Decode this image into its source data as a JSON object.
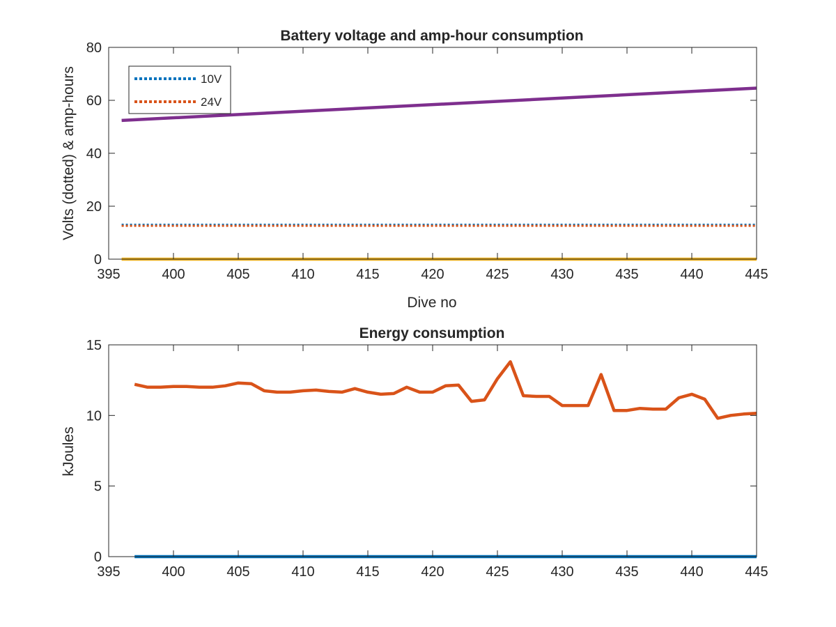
{
  "chart_data": [
    {
      "type": "line",
      "title": "Battery voltage and amp-hour consumption",
      "xlabel": "Dive no",
      "ylabel": "Volts (dotted) & amp-hours",
      "xlim": [
        395,
        445
      ],
      "ylim": [
        0,
        80
      ],
      "xticks": [
        "395",
        "400",
        "405",
        "410",
        "415",
        "420",
        "425",
        "430",
        "435",
        "440",
        "445"
      ],
      "yticks": [
        "0",
        "20",
        "40",
        "60",
        "80"
      ],
      "grid": false,
      "legend_placement": "top-left",
      "legend": [
        "10V",
        "24V"
      ],
      "series": [
        {
          "name": "10V",
          "style": "dotted",
          "color": "#0072BD",
          "x": [
            396,
            445
          ],
          "y": [
            13.0,
            13.0
          ]
        },
        {
          "name": "24V",
          "style": "dotted",
          "color": "#D95319",
          "x": [
            396,
            445
          ],
          "y": [
            12.6,
            12.6
          ]
        },
        {
          "style": "solid",
          "color": "#7E2F8E",
          "x": [
            396,
            445
          ],
          "y": [
            52.4,
            64.6
          ]
        },
        {
          "style": "solid",
          "color": "#EDB120",
          "x": [
            396,
            445
          ],
          "y": [
            0,
            0
          ]
        }
      ]
    },
    {
      "type": "line",
      "title": "Energy consumption",
      "xlabel": "",
      "ylabel": "kJoules",
      "xlim": [
        395,
        445
      ],
      "ylim": [
        0,
        15
      ],
      "xticks": [
        "395",
        "400",
        "405",
        "410",
        "415",
        "420",
        "425",
        "430",
        "435",
        "440",
        "445"
      ],
      "yticks": [
        "0",
        "5",
        "10",
        "15"
      ],
      "grid": false,
      "series": [
        {
          "style": "solid",
          "color": "#D95319",
          "x": [
            397,
            398,
            399,
            400,
            401,
            402,
            403,
            404,
            405,
            406,
            407,
            408,
            409,
            410,
            411,
            412,
            413,
            414,
            415,
            416,
            417,
            418,
            419,
            420,
            421,
            422,
            423,
            424,
            425,
            426,
            427,
            428,
            429,
            430,
            431,
            432,
            433,
            434,
            435,
            436,
            437,
            438,
            439,
            440,
            441,
            442,
            443,
            444,
            445
          ],
          "y": [
            12.2,
            12.0,
            12.0,
            12.05,
            12.05,
            12.0,
            12.0,
            12.1,
            12.3,
            12.25,
            11.75,
            11.65,
            11.65,
            11.75,
            11.8,
            11.7,
            11.65,
            11.9,
            11.65,
            11.5,
            11.55,
            12.0,
            11.65,
            11.65,
            12.1,
            12.15,
            11.0,
            11.1,
            12.6,
            13.8,
            11.4,
            11.35,
            11.35,
            10.7,
            10.7,
            10.7,
            12.9,
            10.35,
            10.35,
            10.5,
            10.45,
            10.45,
            11.25,
            11.5,
            11.15,
            9.8,
            10.0,
            10.1,
            10.15
          ]
        },
        {
          "style": "solid",
          "color": "#0072BD",
          "x": [
            397,
            445
          ],
          "y": [
            0,
            0
          ]
        }
      ]
    }
  ]
}
